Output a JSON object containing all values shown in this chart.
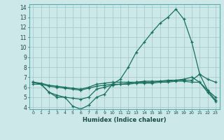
{
  "xlabel": "Humidex (Indice chaleur)",
  "bg_color": "#cce8e8",
  "line_color": "#1a7060",
  "grid_color": "#a0c8c8",
  "xlim": [
    -0.5,
    23.5
  ],
  "ylim": [
    3.8,
    14.3
  ],
  "yticks": [
    4,
    5,
    6,
    7,
    8,
    9,
    10,
    11,
    12,
    13,
    14
  ],
  "xticks": [
    0,
    1,
    2,
    3,
    4,
    5,
    6,
    7,
    8,
    9,
    10,
    11,
    12,
    13,
    14,
    15,
    16,
    17,
    18,
    19,
    20,
    21,
    22,
    23
  ],
  "series": [
    {
      "x": [
        0,
        1,
        2,
        3,
        4,
        5,
        6,
        7,
        8,
        9,
        10,
        11,
        12,
        13,
        14,
        15,
        16,
        17,
        18,
        19,
        20,
        21,
        22,
        23
      ],
      "y": [
        6.5,
        6.3,
        5.5,
        5.0,
        5.0,
        4.1,
        3.8,
        4.2,
        5.0,
        5.3,
        6.3,
        6.8,
        8.0,
        9.5,
        10.5,
        11.5,
        12.4,
        13.0,
        13.8,
        12.8,
        10.5,
        7.3,
        6.8,
        6.5
      ]
    },
    {
      "x": [
        0,
        1,
        2,
        3,
        4,
        5,
        6,
        7,
        8,
        9,
        10,
        11,
        12,
        13,
        14,
        15,
        16,
        17,
        18,
        19,
        20,
        21,
        22,
        23
      ],
      "y": [
        6.5,
        6.4,
        6.2,
        6.1,
        6.0,
        5.9,
        5.8,
        6.0,
        6.3,
        6.4,
        6.5,
        6.5,
        6.5,
        6.5,
        6.6,
        6.6,
        6.6,
        6.7,
        6.7,
        6.7,
        6.7,
        7.3,
        5.7,
        4.7
      ]
    },
    {
      "x": [
        0,
        1,
        2,
        3,
        4,
        5,
        6,
        7,
        8,
        9,
        10,
        11,
        12,
        13,
        14,
        15,
        16,
        17,
        18,
        19,
        20,
        21,
        22,
        23
      ],
      "y": [
        6.3,
        6.3,
        6.1,
        6.0,
        5.9,
        5.8,
        5.7,
        5.9,
        6.1,
        6.2,
        6.3,
        6.3,
        6.3,
        6.4,
        6.4,
        6.4,
        6.5,
        6.5,
        6.6,
        6.6,
        6.5,
        6.5,
        5.5,
        4.6
      ]
    },
    {
      "x": [
        0,
        1,
        2,
        3,
        4,
        5,
        6,
        7,
        8,
        9,
        10,
        11,
        12,
        13,
        14,
        15,
        16,
        17,
        18,
        19,
        20,
        21,
        22,
        23
      ],
      "y": [
        6.5,
        6.3,
        5.5,
        5.2,
        5.0,
        4.9,
        4.8,
        5.0,
        5.8,
        6.0,
        6.2,
        6.3,
        6.4,
        6.5,
        6.5,
        6.5,
        6.6,
        6.6,
        6.7,
        6.8,
        7.0,
        6.5,
        5.7,
        5.0
      ]
    }
  ]
}
